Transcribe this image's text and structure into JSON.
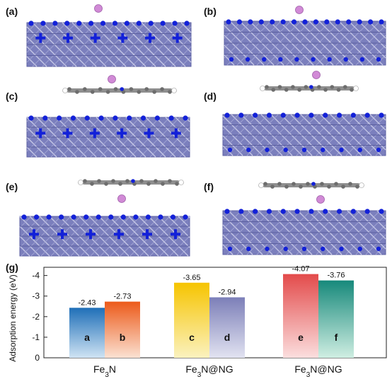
{
  "panels": [
    {
      "label": "(a)"
    },
    {
      "label": "(b)"
    },
    {
      "label": "(c)"
    },
    {
      "label": "(d)"
    },
    {
      "label": "(e)"
    },
    {
      "label": "(f)"
    }
  ],
  "chart_label": "(g)",
  "colors": {
    "slab": "#7b7fbd",
    "slab_dark": "#5e62a3",
    "nitrogen": "#1321d8",
    "adatom": "#d18ad6",
    "graphene": "#8f8f8f",
    "hydrogen": "#ffffff"
  },
  "chart_data": {
    "type": "bar",
    "ylabel": "Adsorption energy (eV)",
    "yticks": [
      "-4",
      "-3",
      "-2",
      "-1",
      "0"
    ],
    "ylim": [
      0,
      -4.4
    ],
    "groups": [
      {
        "name": "Fe3N",
        "name_main": "Fe",
        "name_sub": "3",
        "name_rest": "N",
        "bars": [
          {
            "letter": "a",
            "value": -2.43,
            "label": "-2.43",
            "color_top": "#1f6fb8",
            "color_bottom": "#cfe3f3"
          },
          {
            "letter": "b",
            "value": -2.73,
            "label": "-2.73",
            "color_top": "#ec5a1a",
            "color_bottom": "#fbe1d2"
          }
        ]
      },
      {
        "name": "Fe3N@NG",
        "name_main": "Fe",
        "name_sub": "3",
        "name_rest": "N@NG",
        "bars": [
          {
            "letter": "c",
            "value": -3.65,
            "label": "-3.65",
            "color_top": "#f6c400",
            "color_bottom": "#fbf2bf"
          },
          {
            "letter": "d",
            "value": -2.94,
            "label": "-2.94",
            "color_top": "#7c7fb8",
            "color_bottom": "#e2e3f1"
          }
        ]
      },
      {
        "name": "Fe3N@NG",
        "name_main": "Fe",
        "name_sub": "3",
        "name_rest": "N@NG",
        "bars": [
          {
            "letter": "e",
            "value": -4.07,
            "label": "-4.07",
            "color_top": "#e34b4b",
            "color_bottom": "#fbdede"
          },
          {
            "letter": "f",
            "value": -3.76,
            "label": "-3.76",
            "color_top": "#17897b",
            "color_bottom": "#cfeee2"
          }
        ]
      }
    ]
  }
}
